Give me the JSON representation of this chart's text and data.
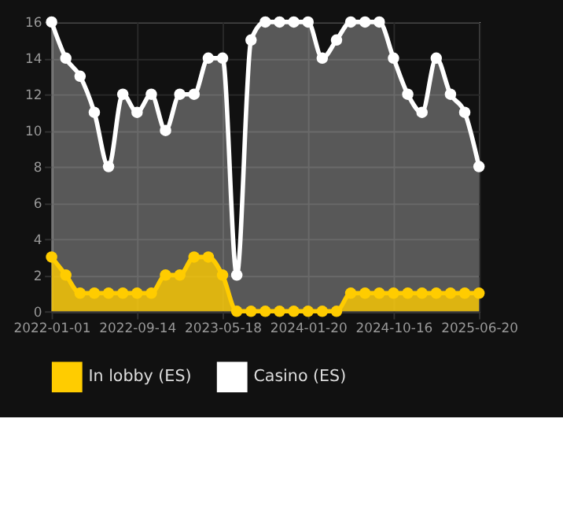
{
  "chart_data": {
    "type": "area",
    "categories": [
      "2022-01-01",
      null,
      null,
      null,
      null,
      null,
      "2022-09-14",
      null,
      null,
      null,
      null,
      null,
      "2023-05-18",
      null,
      null,
      null,
      null,
      null,
      "2024-01-20",
      null,
      null,
      null,
      null,
      null,
      "2024-10-16",
      null,
      null,
      null,
      null,
      null,
      "2025-06-20"
    ],
    "series": [
      {
        "name": "In lobby (ES)",
        "color": "#ffcc00",
        "values": [
          3,
          2,
          1,
          1,
          1,
          1,
          1,
          1,
          2,
          2,
          3,
          3,
          2,
          0,
          0,
          0,
          0,
          0,
          0,
          0,
          0,
          1,
          1,
          1,
          1,
          1,
          1,
          1,
          1,
          1,
          1
        ]
      },
      {
        "name": "Casino (ES)",
        "color": "#ffffff",
        "values": [
          16,
          14,
          13,
          11,
          8,
          12,
          11,
          12,
          10,
          12,
          12,
          14,
          14,
          2,
          15,
          16,
          16,
          16,
          16,
          14,
          15,
          16,
          16,
          16,
          14,
          12,
          11,
          14,
          12,
          11,
          8
        ]
      }
    ],
    "ylim": [
      0,
      16
    ],
    "yticks": [
      0,
      2,
      4,
      6,
      8,
      10,
      12,
      14,
      16
    ],
    "grid": true,
    "legend": "bottom",
    "marker": "circle",
    "line_style": "solid"
  }
}
